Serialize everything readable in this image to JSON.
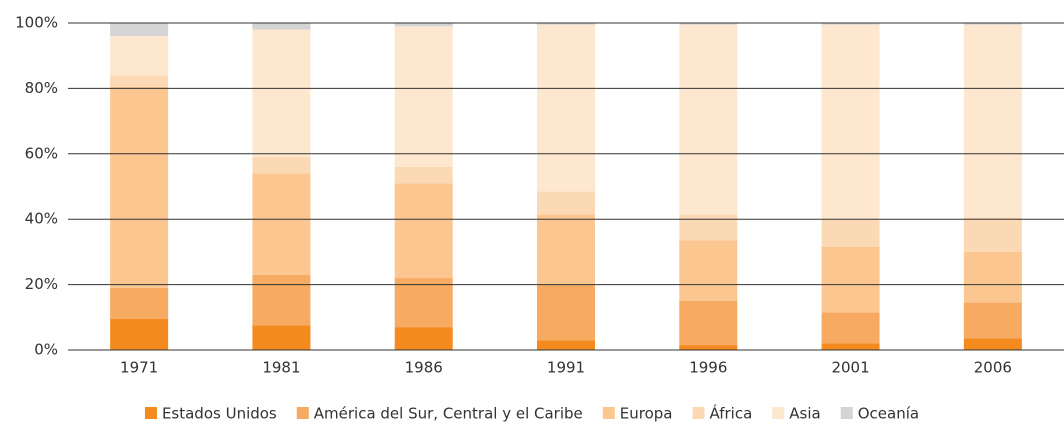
{
  "chart_data": {
    "type": "stacked_bar",
    "categories": [
      "1971",
      "1981",
      "1986",
      "1991",
      "1996",
      "2001",
      "2006"
    ],
    "series": [
      {
        "name": "Estados Unidos",
        "color": "#f58a1f",
        "values": [
          9.5,
          7.5,
          7,
          3,
          1.5,
          2,
          3.5
        ]
      },
      {
        "name": "América del Sur, Central y el Caribe",
        "color": "#f7ab62",
        "values": [
          9.5,
          15.5,
          15,
          17,
          13.5,
          9.5,
          11
        ]
      },
      {
        "name": "Europa",
        "color": "#fbc690",
        "values": [
          61.5,
          31,
          29,
          21.5,
          18.5,
          20,
          15.5
        ]
      },
      {
        "name": "África",
        "color": "#fcd9b5",
        "values": [
          3.5,
          5,
          5,
          7,
          8,
          8.5,
          10.5
        ]
      },
      {
        "name": "Asia",
        "color": "#fde7cf",
        "values": [
          12,
          39,
          43,
          51,
          58,
          59.5,
          59
        ]
      },
      {
        "name": "Oceanía",
        "color": "#d4d4d4",
        "values": [
          4,
          2,
          1,
          0.5,
          0.5,
          0.5,
          0.5
        ]
      }
    ],
    "ylim": [
      0,
      100
    ],
    "yticks": [
      {
        "value": 0,
        "label": "0%"
      },
      {
        "value": 20,
        "label": "20%"
      },
      {
        "value": 40,
        "label": "40%"
      },
      {
        "value": 60,
        "label": "60%"
      },
      {
        "value": 80,
        "label": "80%"
      },
      {
        "value": 100,
        "label": "100%"
      }
    ],
    "grid": true,
    "legend": "bottom"
  }
}
